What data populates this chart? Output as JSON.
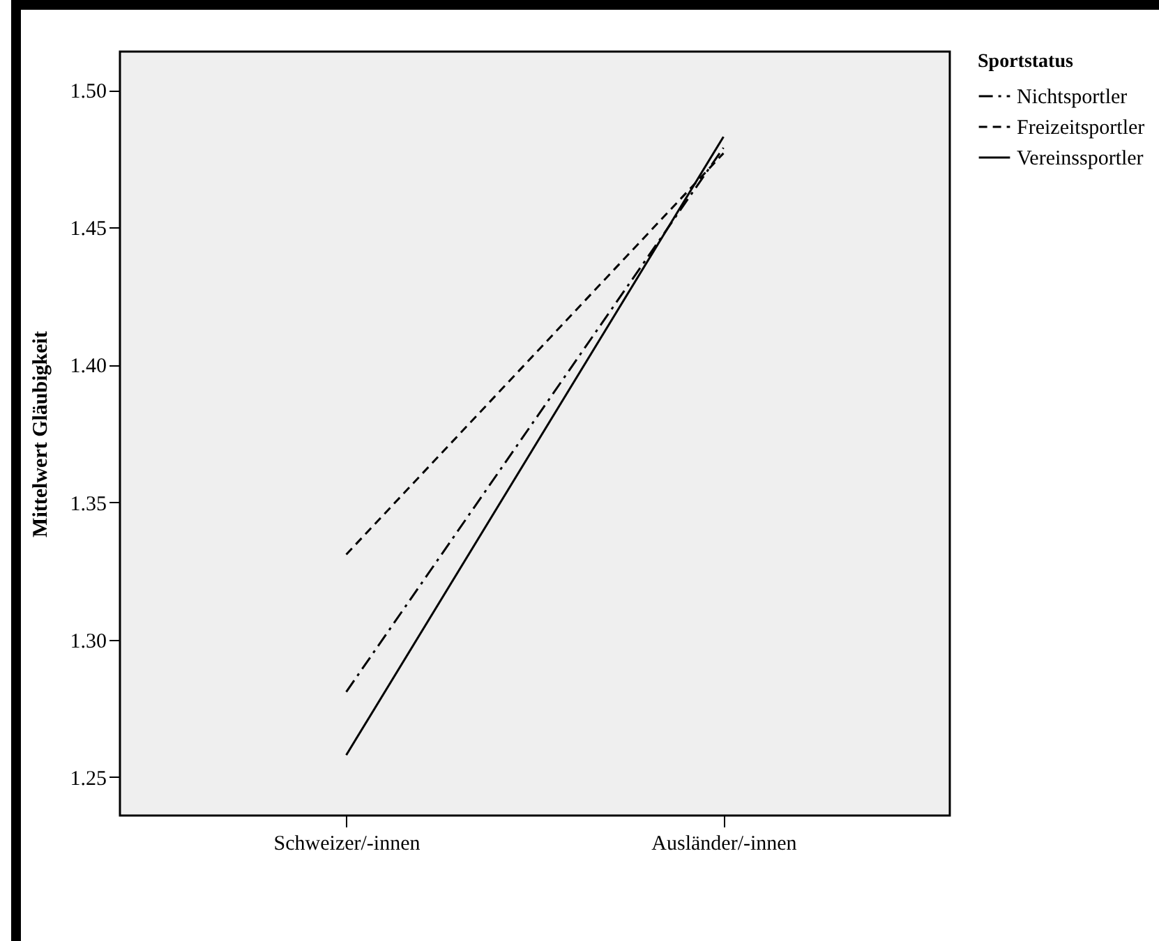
{
  "chart_data": {
    "type": "line",
    "ylabel": "Mittelwert Gläubigkeit",
    "legend_title": "Sportstatus",
    "categories": [
      "Schweizer/-innen",
      "Ausländer/-innen"
    ],
    "series": [
      {
        "name": "Nichtsportler",
        "color": "#000000",
        "line_style": "dashdot",
        "values": [
          1.281,
          1.479
        ]
      },
      {
        "name": "Freizeitsportler",
        "color": "#000000",
        "line_style": "dashed",
        "values": [
          1.331,
          1.477
        ]
      },
      {
        "name": "Vereinssportler",
        "color": "#000000",
        "line_style": "solid",
        "values": [
          1.258,
          1.483
        ]
      }
    ],
    "ylim": [
      1.236,
      1.514
    ],
    "yticks": [
      1.25,
      {
        "value": 1.3,
        "label": "1.30"
      },
      1.35,
      {
        "value": 1.4,
        "label": "1.40"
      },
      1.45,
      {
        "value": 1.5,
        "label": "1.50"
      }
    ],
    "grid": false,
    "legend": "top right",
    "marker": "none"
  }
}
